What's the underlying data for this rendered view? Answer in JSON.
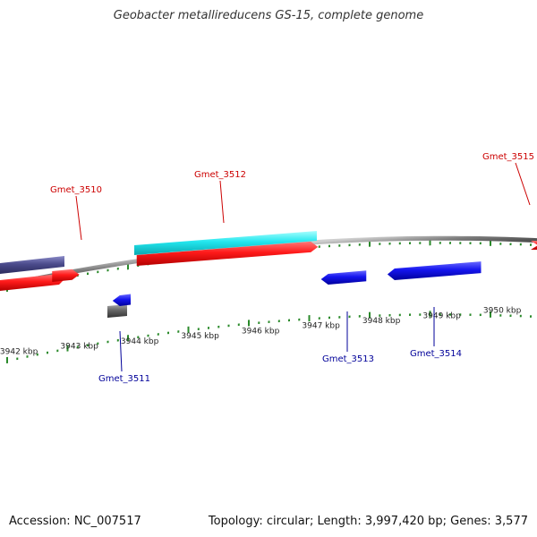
{
  "title": "Geobacter metallireducens GS-15, complete genome",
  "footer": {
    "accession": "Accession: NC_007517",
    "summary": "Topology: circular; Length: 3,997,420 bp; Genes: 3,577"
  },
  "colors": {
    "forward_gene": "#ee1111",
    "reverse_gene": "#1111dd",
    "cds_highlight": "#22e6ee",
    "other_feature": "#4b4b8c",
    "pseudo_gene": "#666666",
    "backbone": "#888888",
    "tick": "#2a8a2a",
    "label_forward": "#cc0000",
    "label_reverse": "#000099"
  },
  "axis": {
    "unit": "kbp",
    "ticks": [
      {
        "kbp": 3942,
        "label": "3942 kbp"
      },
      {
        "kbp": 3943,
        "label": "3943 kbp"
      },
      {
        "kbp": 3944,
        "label": "3944 kbp"
      },
      {
        "kbp": 3945,
        "label": "3945 kbp"
      },
      {
        "kbp": 3946,
        "label": "3946 kbp"
      },
      {
        "kbp": 3947,
        "label": "3947 kbp"
      },
      {
        "kbp": 3948,
        "label": "3948 kbp"
      },
      {
        "kbp": 3949,
        "label": "3949 kbp"
      },
      {
        "kbp": 3950,
        "label": "3950 kbp"
      }
    ]
  },
  "genes": [
    {
      "name": "Gmet_3510",
      "strand": "+",
      "start_kbp": 3942.55,
      "end_kbp": 3943.0,
      "color": "forward_gene"
    },
    {
      "name": "Gmet_3511",
      "strand": "-",
      "start_kbp": 3943.55,
      "end_kbp": 3943.85,
      "color": "reverse_gene"
    },
    {
      "name": "Gmet_3512",
      "strand": "+",
      "start_kbp": 3943.95,
      "end_kbp": 3946.95,
      "color": "forward_gene"
    },
    {
      "name": "Gmet_3513",
      "strand": "-",
      "start_kbp": 3947.0,
      "end_kbp": 3947.75,
      "color": "reverse_gene"
    },
    {
      "name": "Gmet_3514",
      "strand": "-",
      "start_kbp": 3948.1,
      "end_kbp": 3949.65,
      "color": "reverse_gene"
    },
    {
      "name": "Gmet_3515",
      "strand": "+",
      "start_kbp": 3950.6,
      "end_kbp": 3951.0,
      "color": "forward_gene"
    }
  ],
  "labels": {
    "gmet_3510": "Gmet_3510",
    "gmet_3511": "Gmet_3511",
    "gmet_3512": "Gmet_3512",
    "gmet_3513": "Gmet_3513",
    "gmet_3514": "Gmet_3514",
    "gmet_3515": "Gmet_3515"
  }
}
